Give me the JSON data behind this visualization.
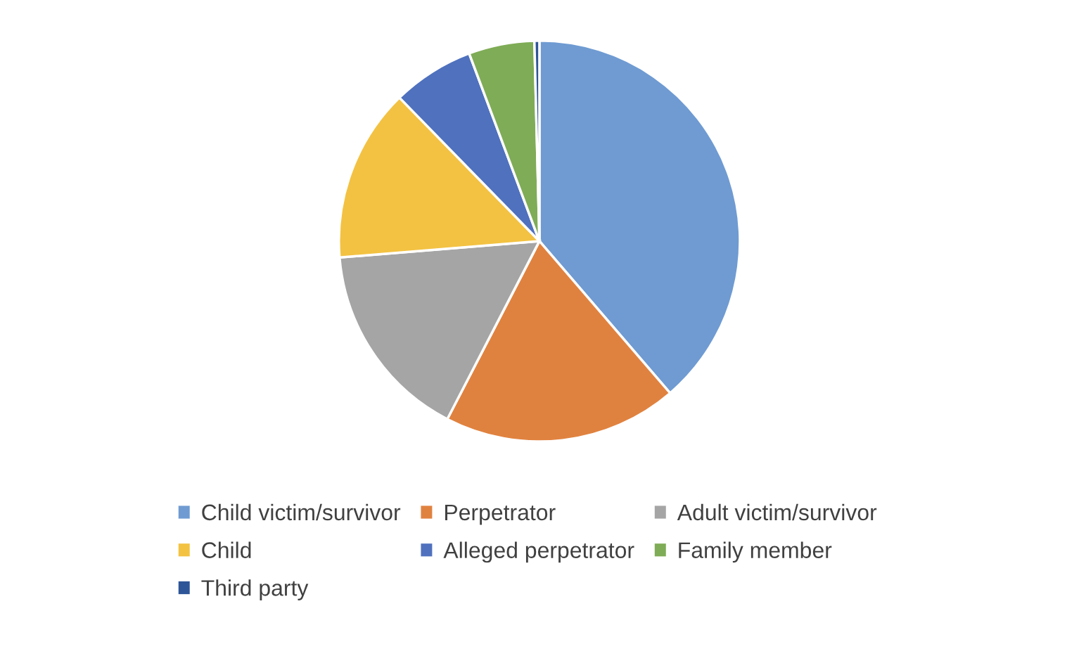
{
  "chart_data": {
    "type": "pie",
    "categories": [
      "Child victim/survivor",
      "Perpetrator",
      "Adult victim/survivor",
      "Child",
      "Alleged perpetrator",
      "Family member",
      "Third party"
    ],
    "values": [
      38.7,
      18.9,
      16.1,
      14.0,
      6.6,
      5.3,
      0.4
    ],
    "colors": [
      "#6f9bd2",
      "#e0823f",
      "#a5a5a5",
      "#f3c242",
      "#4f71be",
      "#7fac56",
      "#2e5597"
    ],
    "legend": "bottom"
  }
}
